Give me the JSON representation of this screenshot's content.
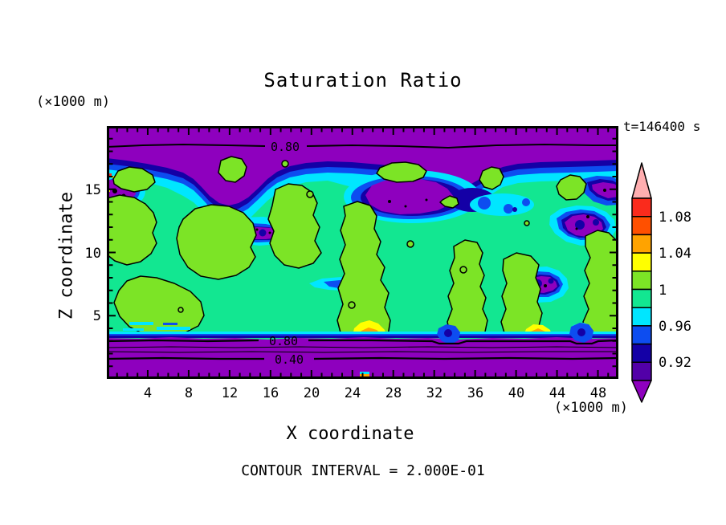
{
  "chart_data": {
    "type": "contour",
    "title": "Saturation Ratio",
    "time_label": "t=146400 s",
    "xlabel": "X coordinate",
    "ylabel": "Z coordinate",
    "x_units": "(×1000 m)",
    "y_units": "(×1000 m)",
    "x_range": [
      0,
      50
    ],
    "y_range": [
      0,
      20
    ],
    "x_ticks": [
      "4",
      "8",
      "12",
      "16",
      "20",
      "24",
      "28",
      "32",
      "36",
      "40",
      "44",
      "48"
    ],
    "x_minor_tick_step": 1,
    "y_ticks": [
      "5",
      "10",
      "15"
    ],
    "y_minor_tick_step": 1,
    "grid": false,
    "contour_interval": 0.2,
    "contour_interval_label": "CONTOUR INTERVAL = 2.000E-01",
    "contour_line_labels": [
      {
        "text": "0.80",
        "location": "upper purple band, x≈16, z≈18.5"
      },
      {
        "text": "0.80",
        "location": "lower purple band, x≈17, z≈3.6"
      },
      {
        "text": "0.40",
        "location": "lower purple band, x≈17.5, z≈2.2"
      }
    ],
    "colorbar": {
      "labels": [
        "1.08",
        "1.04",
        "1",
        "0.96",
        "0.92"
      ],
      "level_step": 0.02,
      "bands": [
        {
          "range": "> 1.10",
          "color": "#FFAEB0",
          "shape": "up-arrow"
        },
        {
          "range": "1.08 - 1.10",
          "color": "#FA2B1C"
        },
        {
          "range": "1.06 - 1.08",
          "color": "#FF5000"
        },
        {
          "range": "1.04 - 1.06",
          "color": "#FFA300"
        },
        {
          "range": "1.02 - 1.04",
          "color": "#FFFF00"
        },
        {
          "range": "1.00 - 1.02",
          "color": "#7CE426"
        },
        {
          "range": "0.98 - 1.00",
          "color": "#12E791"
        },
        {
          "range": "0.96 - 0.98",
          "color": "#00E6FF"
        },
        {
          "range": "0.94 - 0.96",
          "color": "#0D4DF0"
        },
        {
          "range": "0.92 - 0.94",
          "color": "#1400A6"
        },
        {
          "range": "0.90 - 0.92",
          "color": "#5200A8"
        },
        {
          "range": "< 0.90",
          "color": "#8E00BE",
          "shape": "down-arrow"
        }
      ]
    },
    "field_summary": "Saturation ratio near 1 (green) through cloud layer z≈3-17 km; sub-saturated purple band above z≈18 km (0.80 contour) and below z≈3 km (0.80, 0.40 contours); scattered sub-saturated pockets (cyan/blue/purple) and small supersaturated spots (yellow/orange/red) near cloud base."
  }
}
